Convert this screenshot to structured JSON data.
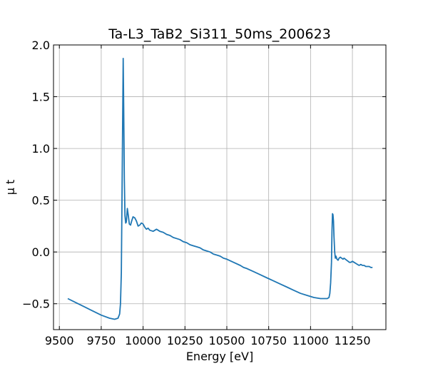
{
  "chart_data": {
    "type": "line",
    "title": "Ta-L3_TaB2_Si311_50ms_200623",
    "xlabel": "Energy [eV]",
    "ylabel": "μ t",
    "xlim": [
      9465,
      11450
    ],
    "ylim": [
      -0.75,
      2.0
    ],
    "xticks": [
      9500,
      9750,
      10000,
      10250,
      10500,
      10750,
      11000,
      11250
    ],
    "yticks": [
      -0.5,
      0.0,
      0.5,
      1.0,
      1.5,
      2.0
    ],
    "xtick_labels": [
      "9500",
      "9750",
      "10000",
      "10250",
      "10500",
      "10750",
      "11000",
      "11250"
    ],
    "ytick_labels": [
      "−0.5",
      "0.0",
      "0.5",
      "1.0",
      "1.5",
      "2.0"
    ],
    "grid": true,
    "colors": {
      "series": "#1f77b4"
    },
    "series": [
      {
        "x": [
          9550,
          9600,
          9650,
          9700,
          9750,
          9800,
          9830,
          9850,
          9860,
          9865,
          9870,
          9874,
          9878,
          9881,
          9884,
          9888,
          9892,
          9896,
          9900,
          9906,
          9912,
          9918,
          9925,
          9932,
          9940,
          9950,
          9960,
          9970,
          9980,
          9990,
          10000,
          10010,
          10020,
          10030,
          10040,
          10060,
          10080,
          10100,
          10120,
          10140,
          10160,
          10180,
          10200,
          10220,
          10240,
          10260,
          10280,
          10300,
          10320,
          10340,
          10360,
          10380,
          10400,
          10420,
          10440,
          10460,
          10480,
          10500,
          10540,
          10580,
          10600,
          10620,
          10660,
          10700,
          10740,
          10780,
          10820,
          10860,
          10900,
          10940,
          10980,
          11020,
          11060,
          11080,
          11100,
          11110,
          11115,
          11120,
          11125,
          11128,
          11131,
          11134,
          11137,
          11140,
          11144,
          11148,
          11152,
          11158,
          11164,
          11170,
          11178,
          11186,
          11194,
          11200,
          11208,
          11216,
          11224,
          11232,
          11240,
          11250,
          11260,
          11270,
          11280,
          11290,
          11300,
          11310,
          11320,
          11330,
          11340,
          11350,
          11360,
          11370
        ],
        "y": [
          -0.45,
          -0.49,
          -0.53,
          -0.57,
          -0.61,
          -0.64,
          -0.65,
          -0.64,
          -0.6,
          -0.5,
          -0.2,
          0.5,
          1.3,
          1.87,
          1.4,
          0.7,
          0.35,
          0.28,
          0.29,
          0.42,
          0.35,
          0.27,
          0.26,
          0.3,
          0.34,
          0.33,
          0.3,
          0.25,
          0.26,
          0.28,
          0.27,
          0.24,
          0.22,
          0.23,
          0.21,
          0.2,
          0.22,
          0.2,
          0.19,
          0.17,
          0.16,
          0.14,
          0.13,
          0.12,
          0.1,
          0.09,
          0.07,
          0.06,
          0.05,
          0.04,
          0.02,
          0.01,
          0.0,
          -0.02,
          -0.03,
          -0.04,
          -0.06,
          -0.07,
          -0.1,
          -0.13,
          -0.15,
          -0.16,
          -0.19,
          -0.22,
          -0.25,
          -0.28,
          -0.31,
          -0.34,
          -0.37,
          -0.4,
          -0.42,
          -0.44,
          -0.45,
          -0.45,
          -0.45,
          -0.44,
          -0.4,
          -0.3,
          -0.1,
          0.2,
          0.37,
          0.36,
          0.3,
          0.15,
          0.0,
          -0.06,
          -0.04,
          -0.07,
          -0.08,
          -0.06,
          -0.05,
          -0.06,
          -0.07,
          -0.06,
          -0.07,
          -0.08,
          -0.09,
          -0.1,
          -0.1,
          -0.09,
          -0.1,
          -0.11,
          -0.12,
          -0.13,
          -0.12,
          -0.13,
          -0.13,
          -0.14,
          -0.14,
          -0.14,
          -0.15,
          -0.15
        ]
      }
    ]
  }
}
